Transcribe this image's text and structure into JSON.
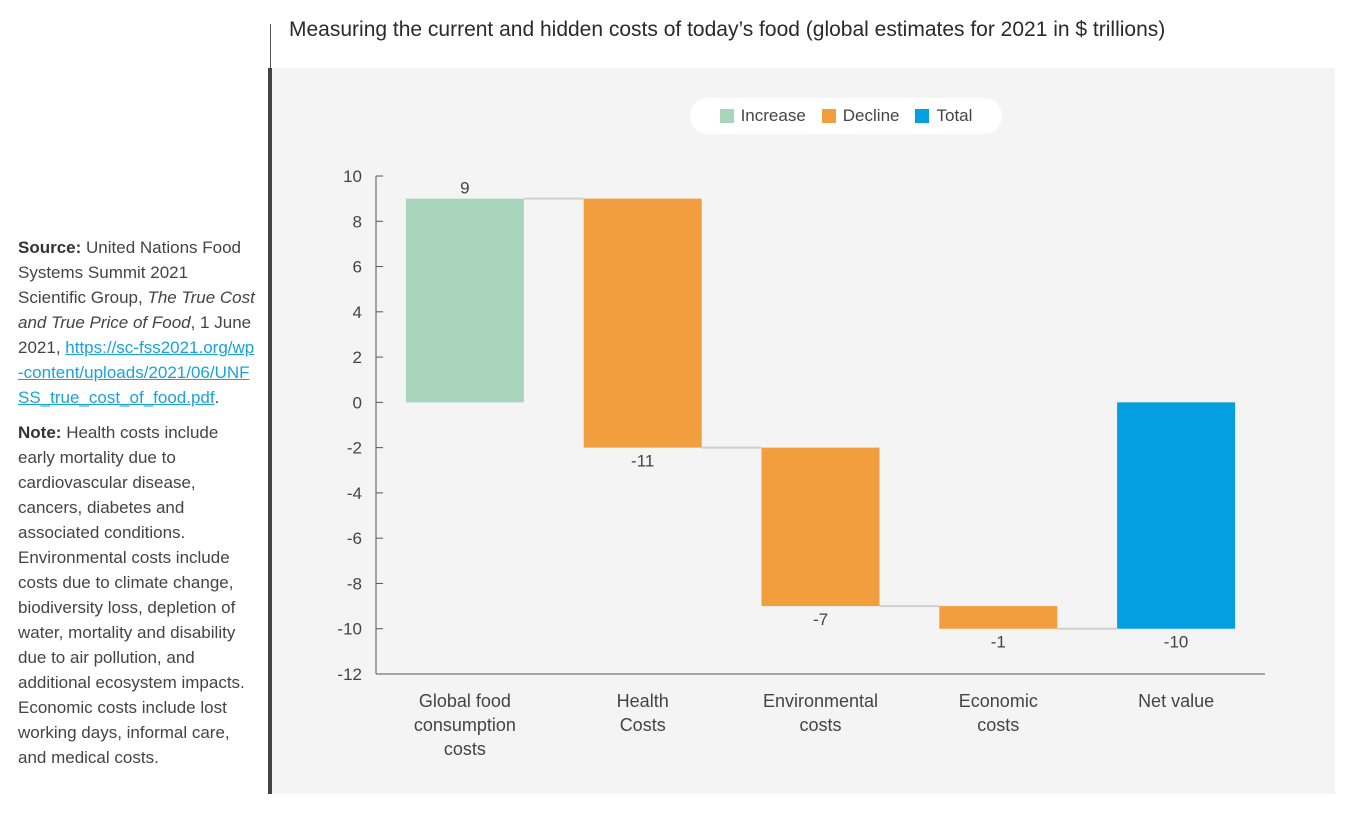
{
  "sidebar": {
    "source_label": "Source:",
    "source_text": "United Nations Food Systems Summit 2021 Scientific Group,",
    "source_title": "The True Cost and True Price of Food",
    "source_date": ", 1 June 2021,",
    "source_url": "https://sc-fss2021.org/wp-content/uploads/2021/06/UNFSS_true_cost_of_food.pdf",
    "source_end": ".",
    "note_label": "Note:",
    "note_text": "Health costs include early mortality due to cardiovascular disease, cancers, diabetes and associated conditions. Environmental costs include costs due to climate change, biodiversity loss, depletion of water, mortality and disability due to air pollution, and additional ecosystem impacts. Economic costs include lost working days, informal care, and medical costs."
  },
  "chart_data": {
    "type": "bar",
    "subtype": "waterfall",
    "title": "Measuring the current and hidden costs of today’s food (global estimates for 2021 in $ trillions)",
    "categories": [
      "Global food consumption costs",
      "Health Costs",
      "Environmental costs",
      "Economic costs",
      "Net value"
    ],
    "category_lines": [
      [
        "Global food",
        "consumption",
        "costs"
      ],
      [
        "Health",
        "Costs"
      ],
      [
        "Environmental",
        "costs"
      ],
      [
        "Economic",
        "costs"
      ],
      [
        "Net value"
      ]
    ],
    "values": [
      9,
      -11,
      -7,
      -1,
      -10
    ],
    "kinds": [
      "increase",
      "decline",
      "decline",
      "decline",
      "total"
    ],
    "value_labels": [
      "9",
      "-11",
      "-7",
      "-1",
      "-10"
    ],
    "legend": [
      {
        "label": "Increase",
        "color": "#a8d5bc"
      },
      {
        "label": "Decline",
        "color": "#f39e3e"
      },
      {
        "label": "Total",
        "color": "#049fe0"
      }
    ],
    "ylim": [
      -12,
      10
    ],
    "yticks": [
      10,
      8,
      6,
      4,
      2,
      0,
      -2,
      -4,
      -6,
      -8,
      -10,
      -12
    ],
    "ytick_labels": [
      "10",
      "8",
      "6",
      "4",
      "2",
      "0",
      "-2",
      "-4",
      "-6",
      "-8",
      "-10",
      "-12"
    ],
    "connector_color": "#d0d0d0",
    "axis_color": "#555555",
    "xlabel": "",
    "ylabel": ""
  }
}
